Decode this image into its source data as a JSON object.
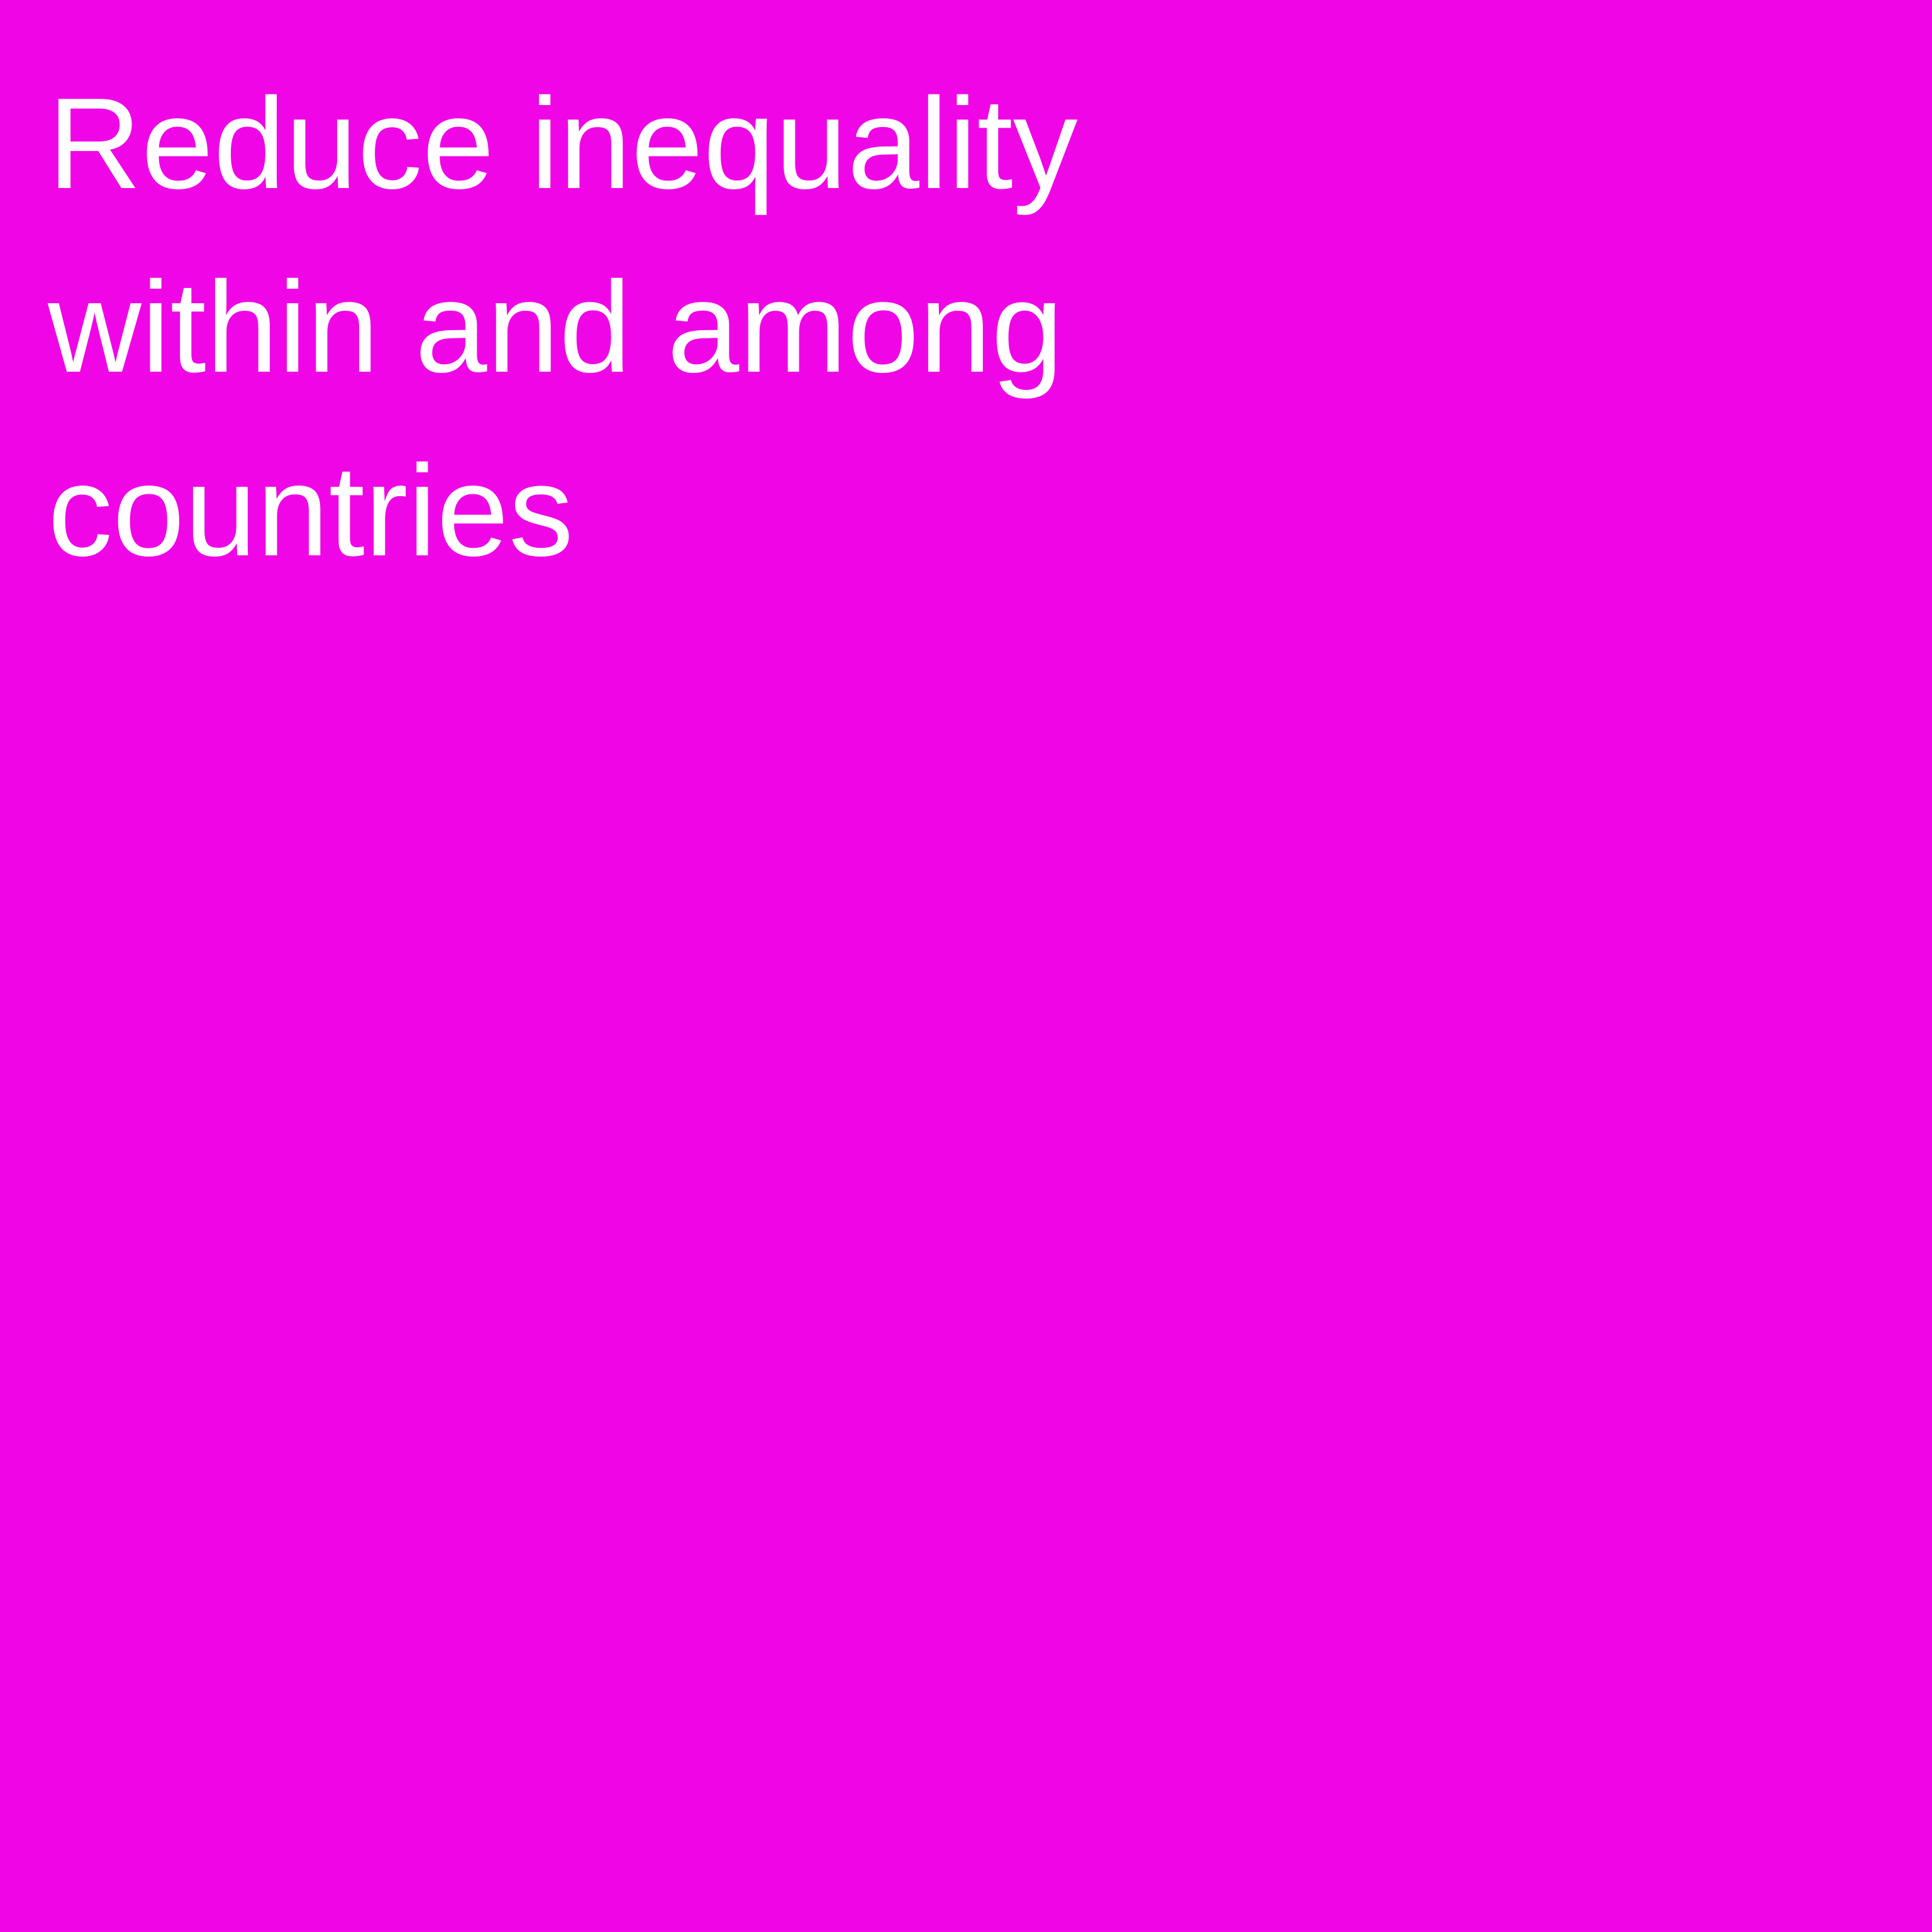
{
  "card": {
    "background_color": "#f005e6",
    "text_color": "#ffffff",
    "title": "Reduce inequality\nwithin and among\ncountries"
  }
}
